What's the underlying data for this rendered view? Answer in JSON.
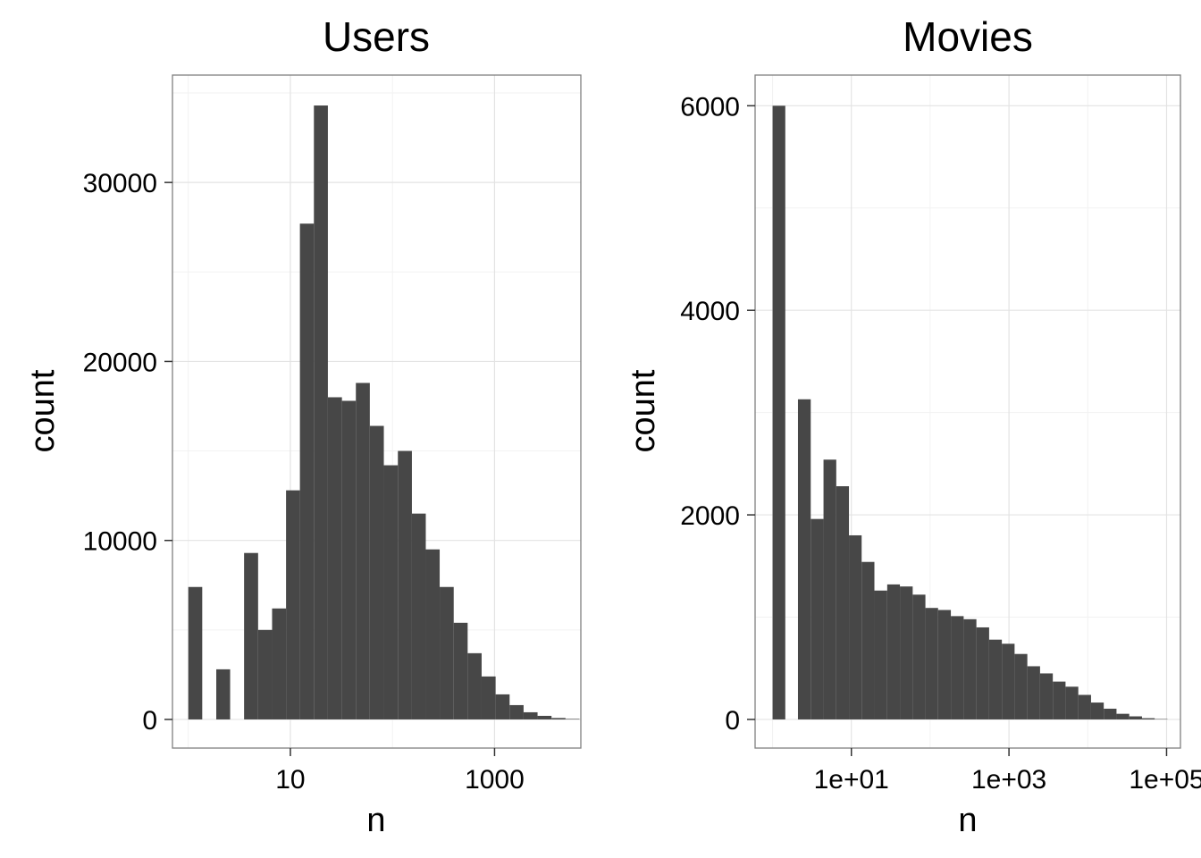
{
  "colors": {
    "bar": "#474747",
    "grid_major": "#e3e3e3",
    "grid_minor": "#f2f2f2",
    "frame": "#7f7f7f",
    "tick": "#333333"
  },
  "chart_data": [
    {
      "type": "bar",
      "title": "Users",
      "xlabel": "n",
      "ylabel": "count",
      "x_scale": "log10",
      "xlim": [
        0.7,
        7000
      ],
      "ylim": [
        -1600,
        36000
      ],
      "x_ticks": [
        10,
        1000
      ],
      "x_tick_labels": [
        "10",
        "1000"
      ],
      "y_ticks": [
        0,
        10000,
        20000,
        30000
      ],
      "y_tick_labels": [
        "0",
        "10000",
        "20000",
        "30000"
      ],
      "grid": true,
      "bins": [
        {
          "x0": 1.0,
          "x1": 1.37,
          "value": 7400
        },
        {
          "x0": 1.37,
          "x1": 1.88,
          "value": 0
        },
        {
          "x0": 1.88,
          "x1": 2.57,
          "value": 2800
        },
        {
          "x0": 2.57,
          "x1": 3.52,
          "value": 0
        },
        {
          "x0": 3.52,
          "x1": 4.83,
          "value": 9300
        },
        {
          "x0": 4.83,
          "x1": 6.62,
          "value": 5000
        },
        {
          "x0": 6.62,
          "x1": 9.07,
          "value": 6200
        },
        {
          "x0": 9.07,
          "x1": 12.4,
          "value": 12800
        },
        {
          "x0": 12.4,
          "x1": 17.0,
          "value": 27700
        },
        {
          "x0": 17.0,
          "x1": 23.3,
          "value": 34300
        },
        {
          "x0": 23.3,
          "x1": 32.0,
          "value": 18000
        },
        {
          "x0": 32.0,
          "x1": 43.8,
          "value": 17800
        },
        {
          "x0": 43.8,
          "x1": 60.0,
          "value": 18800
        },
        {
          "x0": 60.0,
          "x1": 82.3,
          "value": 16400
        },
        {
          "x0": 82.3,
          "x1": 113,
          "value": 14200
        },
        {
          "x0": 113,
          "x1": 155,
          "value": 15000
        },
        {
          "x0": 155,
          "x1": 212,
          "value": 11500
        },
        {
          "x0": 212,
          "x1": 290,
          "value": 9500
        },
        {
          "x0": 290,
          "x1": 398,
          "value": 7400
        },
        {
          "x0": 398,
          "x1": 545,
          "value": 5400
        },
        {
          "x0": 545,
          "x1": 747,
          "value": 3700
        },
        {
          "x0": 747,
          "x1": 1024,
          "value": 2400
        },
        {
          "x0": 1024,
          "x1": 1404,
          "value": 1400
        },
        {
          "x0": 1404,
          "x1": 1924,
          "value": 800
        },
        {
          "x0": 1924,
          "x1": 2637,
          "value": 400
        },
        {
          "x0": 2637,
          "x1": 3614,
          "value": 200
        },
        {
          "x0": 3614,
          "x1": 4954,
          "value": 80
        },
        {
          "x0": 4954,
          "x1": 6790,
          "value": 30
        }
      ]
    },
    {
      "type": "bar",
      "title": "Movies",
      "xlabel": "n",
      "ylabel": "count",
      "x_scale": "log10",
      "xlim": [
        0.6,
        150000
      ],
      "ylim": [
        -280,
        6300
      ],
      "x_ticks": [
        10,
        1000,
        100000
      ],
      "x_tick_labels": [
        "1e+01",
        "1e+03",
        "1e+05"
      ],
      "y_ticks": [
        0,
        2000,
        4000,
        6000
      ],
      "y_tick_labels": [
        "0",
        "2000",
        "4000",
        "6000"
      ],
      "grid": true,
      "bins": [
        {
          "x0": 1.0,
          "x1": 1.45,
          "value": 6000
        },
        {
          "x0": 1.45,
          "x1": 2.1,
          "value": 0
        },
        {
          "x0": 2.1,
          "x1": 3.05,
          "value": 3130
        },
        {
          "x0": 3.05,
          "x1": 4.43,
          "value": 1960
        },
        {
          "x0": 4.43,
          "x1": 6.43,
          "value": 2540
        },
        {
          "x0": 6.43,
          "x1": 9.32,
          "value": 2280
        },
        {
          "x0": 9.32,
          "x1": 13.5,
          "value": 1800
        },
        {
          "x0": 13.5,
          "x1": 19.6,
          "value": 1540
        },
        {
          "x0": 19.6,
          "x1": 28.5,
          "value": 1260
        },
        {
          "x0": 28.5,
          "x1": 41.3,
          "value": 1320
        },
        {
          "x0": 41.3,
          "x1": 60.0,
          "value": 1300
        },
        {
          "x0": 60.0,
          "x1": 87.0,
          "value": 1220
        },
        {
          "x0": 87.0,
          "x1": 126,
          "value": 1090
        },
        {
          "x0": 126,
          "x1": 183,
          "value": 1070
        },
        {
          "x0": 183,
          "x1": 266,
          "value": 1010
        },
        {
          "x0": 266,
          "x1": 386,
          "value": 980
        },
        {
          "x0": 386,
          "x1": 560,
          "value": 900
        },
        {
          "x0": 560,
          "x1": 812,
          "value": 780
        },
        {
          "x0": 812,
          "x1": 1178,
          "value": 740
        },
        {
          "x0": 1178,
          "x1": 1710,
          "value": 640
        },
        {
          "x0": 1710,
          "x1": 2480,
          "value": 520
        },
        {
          "x0": 2480,
          "x1": 3600,
          "value": 450
        },
        {
          "x0": 3600,
          "x1": 5220,
          "value": 370
        },
        {
          "x0": 5220,
          "x1": 7580,
          "value": 320
        },
        {
          "x0": 7580,
          "x1": 11000,
          "value": 240
        },
        {
          "x0": 11000,
          "x1": 15950,
          "value": 165
        },
        {
          "x0": 15950,
          "x1": 23150,
          "value": 105
        },
        {
          "x0": 23150,
          "x1": 33600,
          "value": 55
        },
        {
          "x0": 33600,
          "x1": 48750,
          "value": 30
        },
        {
          "x0": 48750,
          "x1": 70700,
          "value": 12
        },
        {
          "x0": 70700,
          "x1": 102600,
          "value": 4
        }
      ]
    }
  ]
}
